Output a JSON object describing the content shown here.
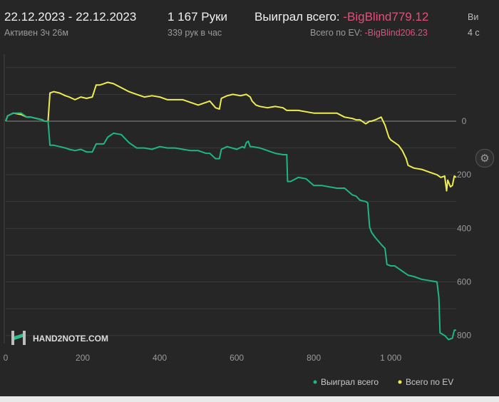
{
  "header": {
    "date_range": "22.12.2023 - 22.12.2023",
    "active_time": "Активен 3ч 26м",
    "hands": "1 167 Руки",
    "hands_per_hour": "339 рук в час",
    "won_total_label": "Выиграл всего:",
    "won_total_value": "-BigBlind779.12",
    "ev_total_label": "Всего по EV:",
    "ev_total_value": "-BigBlind206.23",
    "cut_label_1": "Ви",
    "cut_label_2": "4 с"
  },
  "watermark": {
    "text": "HAND2NOTE.COM"
  },
  "settings": {
    "icon": "gear-icon"
  },
  "colors": {
    "won": "#1fb584",
    "ev": "#eded4f",
    "grid": "#3a3a3a",
    "zero_line": "#8a8a8a",
    "negative_text": "#e0507a"
  },
  "chart_data": {
    "type": "line",
    "x_ticks": [
      "0",
      "200",
      "400",
      "600",
      "800",
      "1 000"
    ],
    "y_ticks": [
      "0",
      "200",
      "400",
      "600",
      "800"
    ],
    "xlim": [
      0,
      1170
    ],
    "ylim": [
      -250,
      830
    ],
    "y_inverted": true,
    "grid": true,
    "legend_position": "bottom-right",
    "series": [
      {
        "name": "Выиграл всего",
        "color": "#1fb584",
        "points": [
          [
            0,
            0
          ],
          [
            5,
            -20
          ],
          [
            20,
            -30
          ],
          [
            40,
            -30
          ],
          [
            55,
            -15
          ],
          [
            65,
            -15
          ],
          [
            95,
            -5
          ],
          [
            100,
            0
          ],
          [
            110,
            0
          ],
          [
            115,
            90
          ],
          [
            125,
            90
          ],
          [
            140,
            95
          ],
          [
            155,
            100
          ],
          [
            165,
            105
          ],
          [
            180,
            110
          ],
          [
            195,
            105
          ],
          [
            210,
            115
          ],
          [
            225,
            115
          ],
          [
            235,
            85
          ],
          [
            245,
            85
          ],
          [
            255,
            85
          ],
          [
            265,
            60
          ],
          [
            280,
            45
          ],
          [
            300,
            50
          ],
          [
            320,
            80
          ],
          [
            340,
            100
          ],
          [
            360,
            100
          ],
          [
            380,
            105
          ],
          [
            400,
            95
          ],
          [
            420,
            100
          ],
          [
            440,
            100
          ],
          [
            460,
            105
          ],
          [
            480,
            110
          ],
          [
            500,
            110
          ],
          [
            520,
            120
          ],
          [
            530,
            120
          ],
          [
            545,
            140
          ],
          [
            555,
            140
          ],
          [
            560,
            105
          ],
          [
            575,
            95
          ],
          [
            600,
            105
          ],
          [
            615,
            95
          ],
          [
            620,
            100
          ],
          [
            625,
            80
          ],
          [
            630,
            75
          ],
          [
            635,
            95
          ],
          [
            640,
            95
          ],
          [
            660,
            100
          ],
          [
            680,
            110
          ],
          [
            700,
            120
          ],
          [
            720,
            125
          ],
          [
            730,
            125
          ],
          [
            732,
            225
          ],
          [
            740,
            225
          ],
          [
            760,
            210
          ],
          [
            780,
            215
          ],
          [
            800,
            240
          ],
          [
            820,
            240
          ],
          [
            840,
            245
          ],
          [
            860,
            250
          ],
          [
            880,
            250
          ],
          [
            900,
            275
          ],
          [
            910,
            280
          ],
          [
            920,
            295
          ],
          [
            935,
            300
          ],
          [
            940,
            305
          ],
          [
            945,
            395
          ],
          [
            950,
            415
          ],
          [
            960,
            435
          ],
          [
            975,
            460
          ],
          [
            985,
            475
          ],
          [
            990,
            535
          ],
          [
            1000,
            540
          ],
          [
            1010,
            540
          ],
          [
            1020,
            550
          ],
          [
            1030,
            560
          ],
          [
            1045,
            575
          ],
          [
            1060,
            580
          ],
          [
            1080,
            590
          ],
          [
            1100,
            595
          ],
          [
            1120,
            600
          ],
          [
            1125,
            660
          ],
          [
            1128,
            790
          ],
          [
            1140,
            800
          ],
          [
            1150,
            815
          ],
          [
            1160,
            810
          ],
          [
            1165,
            780
          ],
          [
            1170,
            780
          ]
        ]
      },
      {
        "name": "Всего по EV",
        "color": "#eded4f",
        "points": [
          [
            0,
            0
          ],
          [
            5,
            -20
          ],
          [
            20,
            -30
          ],
          [
            40,
            -25
          ],
          [
            55,
            -15
          ],
          [
            65,
            -15
          ],
          [
            95,
            -5
          ],
          [
            100,
            0
          ],
          [
            110,
            0
          ],
          [
            115,
            -105
          ],
          [
            125,
            -110
          ],
          [
            140,
            -105
          ],
          [
            155,
            -95
          ],
          [
            165,
            -90
          ],
          [
            180,
            -80
          ],
          [
            195,
            -90
          ],
          [
            210,
            -85
          ],
          [
            225,
            -90
          ],
          [
            235,
            -135
          ],
          [
            245,
            -135
          ],
          [
            255,
            -140
          ],
          [
            265,
            -145
          ],
          [
            280,
            -140
          ],
          [
            300,
            -125
          ],
          [
            320,
            -110
          ],
          [
            340,
            -100
          ],
          [
            360,
            -90
          ],
          [
            380,
            -95
          ],
          [
            400,
            -90
          ],
          [
            420,
            -80
          ],
          [
            440,
            -80
          ],
          [
            460,
            -80
          ],
          [
            480,
            -70
          ],
          [
            500,
            -60
          ],
          [
            520,
            -70
          ],
          [
            530,
            -75
          ],
          [
            545,
            -50
          ],
          [
            555,
            -45
          ],
          [
            560,
            -85
          ],
          [
            575,
            -95
          ],
          [
            590,
            -100
          ],
          [
            610,
            -95
          ],
          [
            625,
            -100
          ],
          [
            635,
            -90
          ],
          [
            640,
            -75
          ],
          [
            650,
            -60
          ],
          [
            660,
            -55
          ],
          [
            680,
            -50
          ],
          [
            700,
            -55
          ],
          [
            720,
            -50
          ],
          [
            730,
            -40
          ],
          [
            740,
            -40
          ],
          [
            760,
            -40
          ],
          [
            780,
            -35
          ],
          [
            800,
            -30
          ],
          [
            820,
            -30
          ],
          [
            840,
            -30
          ],
          [
            860,
            -30
          ],
          [
            880,
            -15
          ],
          [
            900,
            -10
          ],
          [
            910,
            -5
          ],
          [
            920,
            -5
          ],
          [
            935,
            10
          ],
          [
            940,
            5
          ],
          [
            945,
            0
          ],
          [
            950,
            0
          ],
          [
            960,
            -5
          ],
          [
            975,
            -15
          ],
          [
            985,
            15
          ],
          [
            995,
            60
          ],
          [
            1000,
            70
          ],
          [
            1010,
            80
          ],
          [
            1020,
            90
          ],
          [
            1030,
            110
          ],
          [
            1040,
            140
          ],
          [
            1045,
            165
          ],
          [
            1060,
            175
          ],
          [
            1080,
            180
          ],
          [
            1100,
            190
          ],
          [
            1120,
            200
          ],
          [
            1130,
            210
          ],
          [
            1140,
            205
          ],
          [
            1145,
            260
          ],
          [
            1148,
            220
          ],
          [
            1155,
            245
          ],
          [
            1160,
            240
          ],
          [
            1165,
            205
          ],
          [
            1170,
            210
          ]
        ]
      }
    ]
  }
}
